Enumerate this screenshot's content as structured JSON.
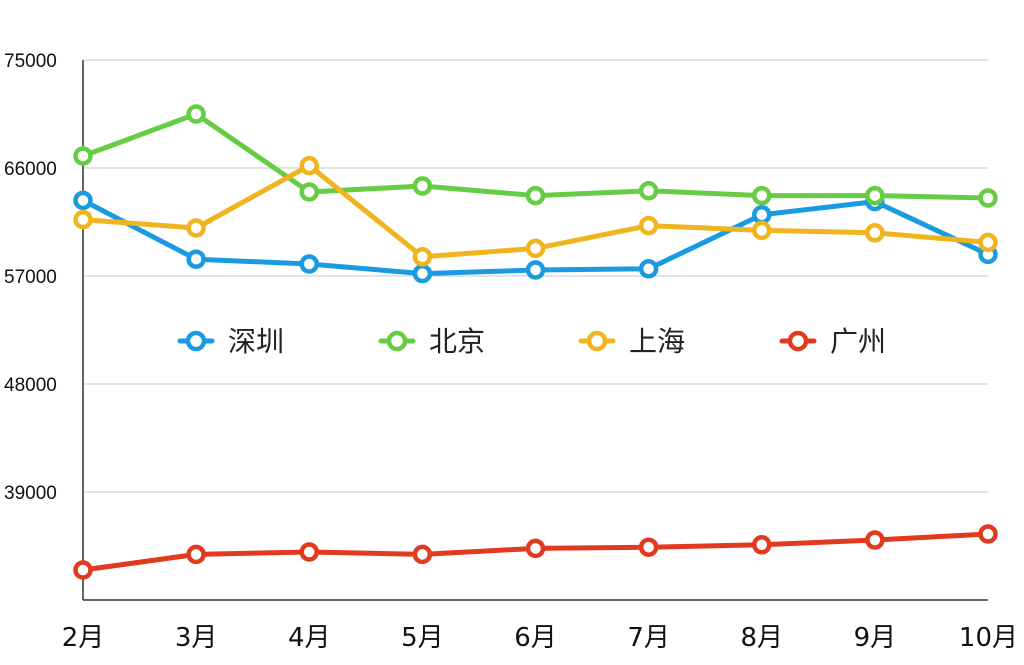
{
  "chart_data": {
    "type": "line",
    "title": "",
    "xlabel": "",
    "ylabel": "",
    "categories": [
      "2月",
      "3月",
      "4月",
      "5月",
      "6月",
      "7月",
      "8月",
      "9月",
      "10月"
    ],
    "y_ticks": [
      "75000",
      "66000",
      "57000",
      "48000",
      "39000"
    ],
    "ylim": [
      30000,
      75000
    ],
    "grid": "horizontal",
    "legend_position": "center",
    "series": [
      {
        "name": "深圳",
        "color": "#1a9be0",
        "values": [
          63300,
          58400,
          58000,
          57200,
          57500,
          57600,
          62100,
          63200,
          58800
        ]
      },
      {
        "name": "北京",
        "color": "#66cc44",
        "values": [
          67000,
          70500,
          64000,
          64500,
          63700,
          64100,
          63700,
          63700,
          63500
        ]
      },
      {
        "name": "上海",
        "color": "#f0b41e",
        "values": [
          61700,
          61000,
          66200,
          58600,
          59300,
          61200,
          60800,
          60600,
          59800
        ]
      },
      {
        "name": "广州",
        "color": "#e23a1e",
        "values": [
          32500,
          33800,
          34000,
          33800,
          34300,
          34400,
          34600,
          35000,
          35500
        ]
      }
    ]
  }
}
